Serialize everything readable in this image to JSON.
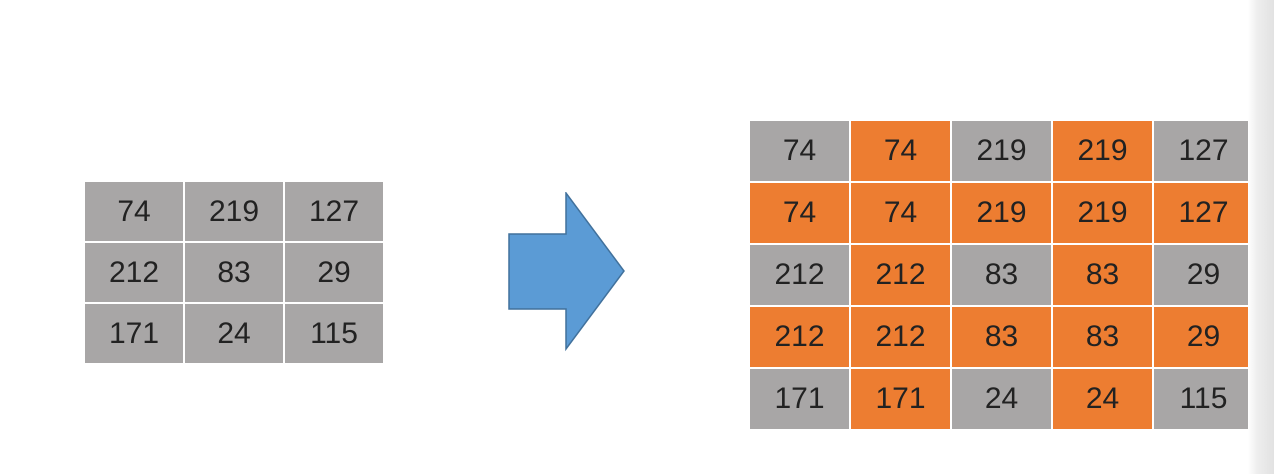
{
  "colors": {
    "original_cell": "#a8a6a6",
    "copied_cell": "#ed7d31",
    "arrow": "#5b9bd5",
    "arrow_stroke": "#41719c",
    "border": "#ffffff"
  },
  "arrow_icon": "right-block-arrow-icon",
  "input_grid": {
    "rows": [
      [
        "74",
        "219",
        "127"
      ],
      [
        "212",
        "83",
        "29"
      ],
      [
        "171",
        "24",
        "115"
      ]
    ]
  },
  "output_grid": {
    "rows": [
      [
        {
          "v": "74",
          "t": "o"
        },
        {
          "v": "74",
          "t": "c"
        },
        {
          "v": "219",
          "t": "o"
        },
        {
          "v": "219",
          "t": "c"
        },
        {
          "v": "127",
          "t": "o"
        }
      ],
      [
        {
          "v": "74",
          "t": "c"
        },
        {
          "v": "74",
          "t": "c"
        },
        {
          "v": "219",
          "t": "c"
        },
        {
          "v": "219",
          "t": "c"
        },
        {
          "v": "127",
          "t": "c"
        }
      ],
      [
        {
          "v": "212",
          "t": "o"
        },
        {
          "v": "212",
          "t": "c"
        },
        {
          "v": "83",
          "t": "o"
        },
        {
          "v": "83",
          "t": "c"
        },
        {
          "v": "29",
          "t": "o"
        }
      ],
      [
        {
          "v": "212",
          "t": "c"
        },
        {
          "v": "212",
          "t": "c"
        },
        {
          "v": "83",
          "t": "c"
        },
        {
          "v": "83",
          "t": "c"
        },
        {
          "v": "29",
          "t": "c"
        }
      ],
      [
        {
          "v": "171",
          "t": "o"
        },
        {
          "v": "171",
          "t": "c"
        },
        {
          "v": "24",
          "t": "o"
        },
        {
          "v": "24",
          "t": "c"
        },
        {
          "v": "115",
          "t": "o"
        }
      ]
    ]
  }
}
